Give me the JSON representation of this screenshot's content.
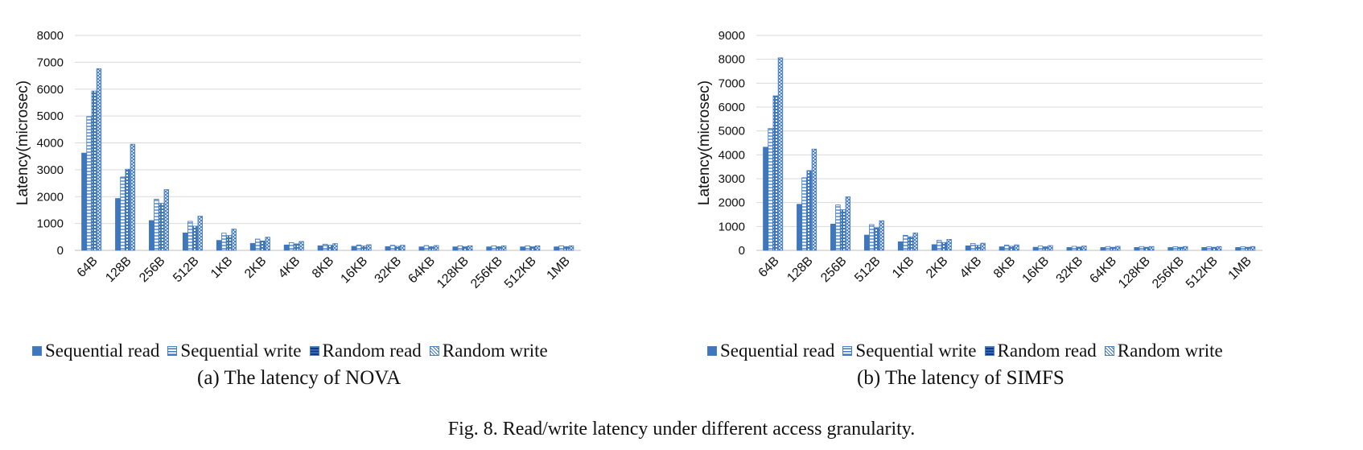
{
  "colors": {
    "bar": "#3f77bc",
    "bar_light": "#ffffff",
    "grid": "#d9d9d9",
    "axis": "#bfbfbf"
  },
  "legend_icons": [
    "solid-fill",
    "horizontal-lines",
    "grid-dots",
    "crosshatch"
  ],
  "figure_caption": "Fig. 8.  Read/write latency under different access granularity.",
  "chart_data": [
    {
      "type": "bar",
      "caption": "(a) The latency of NOVA",
      "ylabel": "Latency(microsec)",
      "xlabel": "",
      "ylim": [
        0,
        8000
      ],
      "yticks": [
        0,
        1000,
        2000,
        3000,
        4000,
        5000,
        6000,
        7000,
        8000
      ],
      "grid": true,
      "legend_position": "bottom",
      "categories": [
        "64B",
        "128B",
        "256B",
        "512B",
        "1KB",
        "2KB",
        "4KB",
        "8KB",
        "16KB",
        "32KB",
        "64KB",
        "128KB",
        "256KB",
        "512KB",
        "1MB"
      ],
      "series": [
        {
          "name": "Sequential read",
          "values": [
            3620,
            1930,
            1110,
            650,
            370,
            260,
            200,
            170,
            150,
            140,
            130,
            130,
            130,
            130,
            130
          ]
        },
        {
          "name": "Sequential write",
          "values": [
            4980,
            2730,
            1900,
            1080,
            640,
            420,
            290,
            230,
            200,
            190,
            180,
            170,
            170,
            170,
            170
          ]
        },
        {
          "name": "Random read",
          "values": [
            5930,
            3020,
            1750,
            900,
            550,
            350,
            240,
            190,
            160,
            150,
            140,
            140,
            140,
            140,
            140
          ]
        },
        {
          "name": "Random write",
          "values": [
            6760,
            3950,
            2260,
            1270,
            790,
            490,
            330,
            250,
            210,
            190,
            180,
            170,
            170,
            170,
            170
          ]
        }
      ]
    },
    {
      "type": "bar",
      "caption": "(b) The latency of SIMFS",
      "ylabel": "Latency(microsec)",
      "xlabel": "",
      "ylim": [
        0,
        9000
      ],
      "yticks": [
        0,
        1000,
        2000,
        3000,
        4000,
        5000,
        6000,
        7000,
        8000,
        9000
      ],
      "grid": true,
      "legend_position": "bottom",
      "categories": [
        "64B",
        "128B",
        "256B",
        "512B",
        "1KB",
        "2KB",
        "4KB",
        "8KB",
        "16KB",
        "32KB",
        "64KB",
        "128KB",
        "256KB",
        "512KB",
        "1MB"
      ],
      "series": [
        {
          "name": "Sequential read",
          "values": [
            4320,
            1930,
            1100,
            640,
            360,
            240,
            190,
            150,
            130,
            120,
            120,
            120,
            120,
            120,
            120
          ]
        },
        {
          "name": "Sequential write",
          "values": [
            5100,
            3040,
            1900,
            1080,
            630,
            420,
            290,
            220,
            180,
            170,
            160,
            160,
            150,
            150,
            150
          ]
        },
        {
          "name": "Random read",
          "values": [
            6470,
            3340,
            1700,
            950,
            570,
            330,
            210,
            170,
            150,
            140,
            130,
            130,
            130,
            130,
            130
          ]
        },
        {
          "name": "Random write",
          "values": [
            8060,
            4240,
            2240,
            1240,
            730,
            460,
            300,
            230,
            200,
            180,
            170,
            160,
            160,
            160,
            160
          ]
        }
      ]
    }
  ]
}
